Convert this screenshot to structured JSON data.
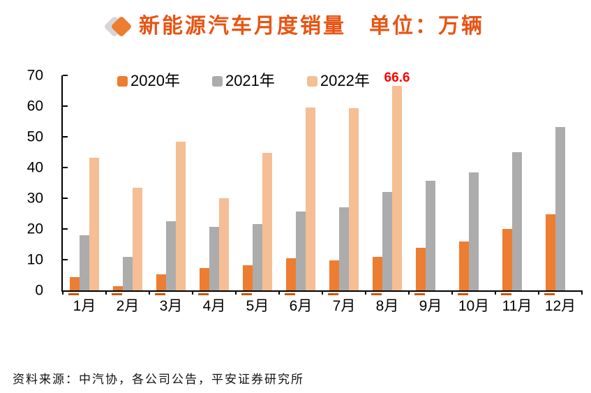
{
  "title": {
    "text": "新能源汽车月度销量　单位：万辆",
    "color": "#E85413"
  },
  "icons": {
    "diamond_gray": "#D6D6D6",
    "diamond_orange": "#ED7D31"
  },
  "chart_data": {
    "type": "bar",
    "title": "新能源汽车月度销量",
    "unit_label": "单位：万辆",
    "categories": [
      "1月",
      "2月",
      "3月",
      "4月",
      "5月",
      "6月",
      "7月",
      "8月",
      "9月",
      "10月",
      "11月",
      "12月"
    ],
    "series": [
      {
        "name": "2020年",
        "color": "#ED7D31",
        "values": [
          4.4,
          1.3,
          5.3,
          7.2,
          8.2,
          10.4,
          9.8,
          10.9,
          13.8,
          16.0,
          20.0,
          24.8
        ]
      },
      {
        "name": "2021年",
        "color": "#ACACAC",
        "values": [
          17.9,
          11.0,
          22.6,
          20.6,
          21.7,
          25.6,
          27.1,
          32.1,
          35.7,
          38.3,
          45.0,
          53.1
        ]
      },
      {
        "name": "2022年",
        "color": "#F5BE94",
        "values": [
          43.1,
          33.4,
          48.4,
          29.9,
          44.7,
          59.6,
          59.3,
          66.6,
          null,
          null,
          null,
          null
        ]
      }
    ],
    "ylim": [
      0,
      70
    ],
    "yticks": [
      0,
      10,
      20,
      30,
      40,
      50,
      60,
      70
    ],
    "grid": false,
    "legend_position": "top-inside",
    "annotation": {
      "text": "66.6",
      "color": "#FF0000",
      "series": "2022年",
      "category": "8月"
    }
  },
  "source": "资料来源：中汽协，各公司公告，平安证券研究所",
  "colors": {
    "axis": "#000000",
    "bar_shadow": "#C55A11",
    "annotation": "#FF0000"
  }
}
